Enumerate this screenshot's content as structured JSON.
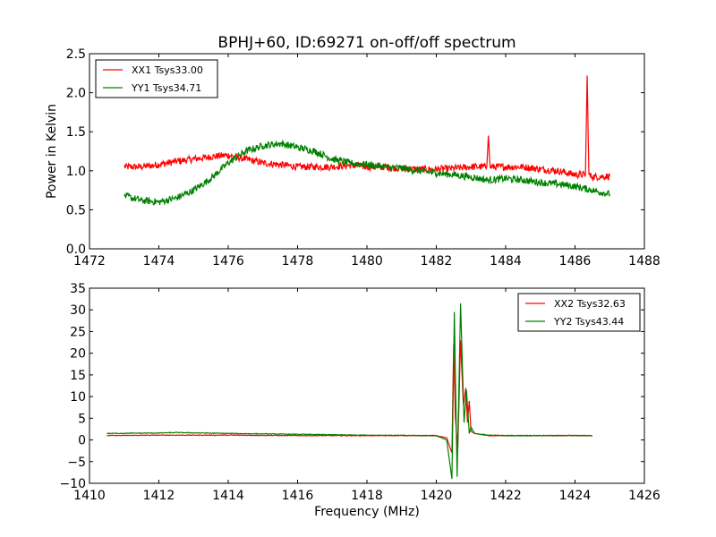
{
  "chart_data": [
    {
      "type": "line",
      "title": "BPHJ+60, ID:69271 on-off/off spectrum",
      "xlabel": "",
      "ylabel": "Power in Kelvin",
      "xlim": [
        1472,
        1488
      ],
      "ylim": [
        0.0,
        2.5
      ],
      "xticks": [
        "1472",
        "1474",
        "1476",
        "1478",
        "1480",
        "1482",
        "1484",
        "1486",
        "1488"
      ],
      "yticks": [
        "0.0",
        "0.5",
        "1.0",
        "1.5",
        "2.0",
        "2.5"
      ],
      "grid": false,
      "legend_position": "top-left",
      "series": [
        {
          "name": "XX1 Tsys33.00",
          "color": "#ff0000",
          "x": [
            1473.0,
            1473.5,
            1474.0,
            1474.5,
            1475.0,
            1475.5,
            1476.0,
            1476.5,
            1477.0,
            1477.5,
            1478.0,
            1478.5,
            1479.0,
            1479.5,
            1480.0,
            1480.5,
            1481.0,
            1481.5,
            1482.0,
            1482.5,
            1483.0,
            1483.45,
            1483.5,
            1483.55,
            1484.0,
            1484.5,
            1485.0,
            1485.5,
            1486.0,
            1486.3,
            1486.35,
            1486.4,
            1486.5,
            1487.0
          ],
          "y": [
            1.05,
            1.05,
            1.08,
            1.12,
            1.15,
            1.18,
            1.2,
            1.15,
            1.1,
            1.08,
            1.05,
            1.05,
            1.05,
            1.07,
            1.05,
            1.05,
            1.03,
            1.02,
            1.02,
            1.03,
            1.05,
            1.05,
            1.45,
            1.05,
            1.05,
            1.05,
            1.02,
            1.0,
            0.95,
            0.95,
            2.22,
            0.95,
            0.92,
            0.93
          ]
        },
        {
          "name": "YY1 Tsys34.71",
          "color": "#008000",
          "x": [
            1473.0,
            1473.5,
            1474.0,
            1474.5,
            1475.0,
            1475.5,
            1476.0,
            1476.5,
            1477.0,
            1477.5,
            1478.0,
            1478.5,
            1479.0,
            1479.5,
            1480.0,
            1480.5,
            1481.0,
            1481.5,
            1482.0,
            1482.5,
            1483.0,
            1483.5,
            1484.0,
            1484.5,
            1485.0,
            1485.5,
            1486.0,
            1486.5,
            1487.0
          ],
          "y": [
            0.68,
            0.62,
            0.6,
            0.65,
            0.75,
            0.9,
            1.1,
            1.25,
            1.32,
            1.35,
            1.3,
            1.25,
            1.15,
            1.1,
            1.08,
            1.05,
            1.03,
            1.0,
            0.97,
            0.95,
            0.92,
            0.88,
            0.9,
            0.88,
            0.85,
            0.83,
            0.8,
            0.75,
            0.7
          ]
        }
      ]
    },
    {
      "type": "line",
      "title": "",
      "xlabel": "Frequency (MHz)",
      "ylabel": "",
      "xlim": [
        1410,
        1426
      ],
      "ylim": [
        -10,
        35
      ],
      "xticks": [
        "1410",
        "1412",
        "1414",
        "1416",
        "1418",
        "1420",
        "1422",
        "1424",
        "1426"
      ],
      "yticks": [
        "−10",
        "−5",
        "0",
        "5",
        "10",
        "15",
        "20",
        "25",
        "30",
        "35"
      ],
      "grid": false,
      "legend_position": "top-right",
      "series": [
        {
          "name": "XX2 Tsys32.63",
          "color": "#ff0000",
          "x": [
            1410.5,
            1412.0,
            1414.0,
            1416.0,
            1418.0,
            1420.0,
            1420.3,
            1420.45,
            1420.5,
            1420.55,
            1420.62,
            1420.7,
            1420.78,
            1420.85,
            1420.9,
            1420.95,
            1421.0,
            1421.1,
            1421.5,
            1422.0,
            1424.5
          ],
          "y": [
            1.0,
            1.1,
            1.1,
            1.0,
            1.0,
            1.0,
            0.5,
            -3.0,
            22.0,
            5.0,
            -2.0,
            23.0,
            8.0,
            12.0,
            4.0,
            9.0,
            2.0,
            1.5,
            1.0,
            1.0,
            1.0
          ]
        },
        {
          "name": "YY2 Tsys43.44",
          "color": "#008000",
          "x": [
            1410.5,
            1412.0,
            1412.5,
            1414.0,
            1416.0,
            1418.0,
            1420.0,
            1420.3,
            1420.45,
            1420.52,
            1420.6,
            1420.7,
            1420.8,
            1420.87,
            1420.95,
            1421.0,
            1421.1,
            1421.5,
            1422.0,
            1424.5
          ],
          "y": [
            1.5,
            1.6,
            1.7,
            1.5,
            1.3,
            1.1,
            1.0,
            0.0,
            -9.0,
            29.5,
            -8.5,
            31.5,
            4.0,
            11.5,
            1.5,
            3.0,
            1.5,
            1.1,
            1.0,
            1.0
          ]
        }
      ]
    }
  ]
}
